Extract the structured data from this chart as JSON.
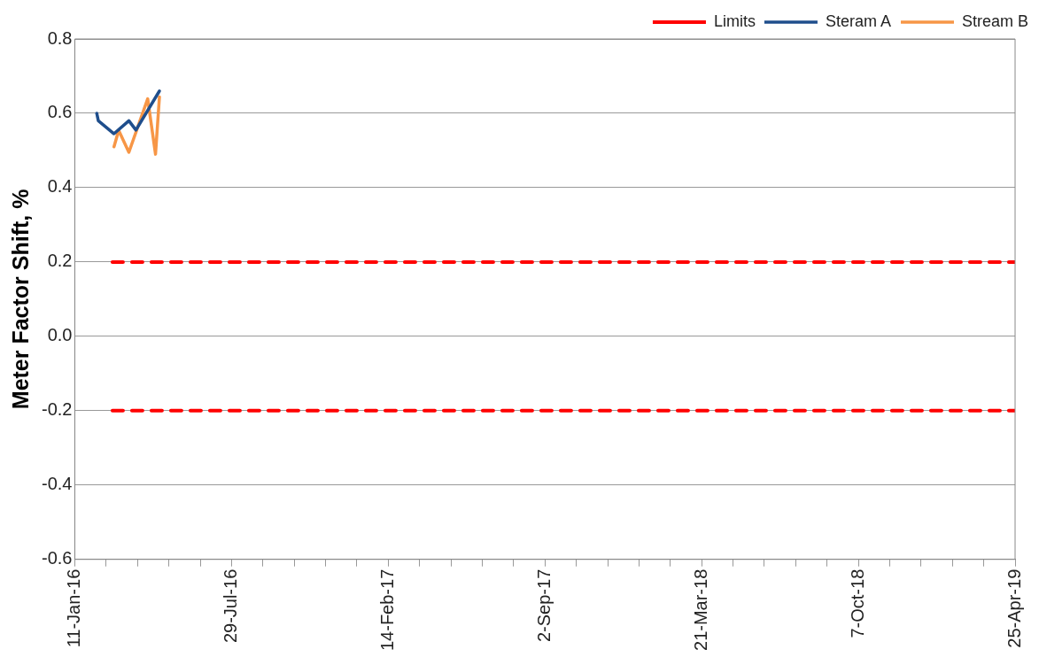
{
  "chart_data": {
    "type": "line",
    "ylabel": "Meter Factor Shift, %",
    "xlim": [
      "2016-01-11",
      "2019-04-25"
    ],
    "xticks": [
      {
        "value": "2016-01-11",
        "label": "11-Jan-16"
      },
      {
        "value": "2016-02-20",
        "label": null
      },
      {
        "value": "2016-03-31",
        "label": null
      },
      {
        "value": "2016-05-10",
        "label": null
      },
      {
        "value": "2016-06-19",
        "label": null
      },
      {
        "value": "2016-07-29",
        "label": "29-Jul-16"
      },
      {
        "value": "2016-09-07",
        "label": null
      },
      {
        "value": "2016-10-17",
        "label": null
      },
      {
        "value": "2016-11-26",
        "label": null
      },
      {
        "value": "2017-01-05",
        "label": null
      },
      {
        "value": "2017-02-14",
        "label": "14-Feb-17"
      },
      {
        "value": "2017-03-26",
        "label": null
      },
      {
        "value": "2017-05-05",
        "label": null
      },
      {
        "value": "2017-06-14",
        "label": null
      },
      {
        "value": "2017-07-24",
        "label": null
      },
      {
        "value": "2017-09-02",
        "label": "2-Sep-17"
      },
      {
        "value": "2017-10-12",
        "label": null
      },
      {
        "value": "2017-11-21",
        "label": null
      },
      {
        "value": "2017-12-31",
        "label": null
      },
      {
        "value": "2018-02-09",
        "label": null
      },
      {
        "value": "2018-03-21",
        "label": "21-Mar-18"
      },
      {
        "value": "2018-04-30",
        "label": null
      },
      {
        "value": "2018-06-09",
        "label": null
      },
      {
        "value": "2018-07-19",
        "label": null
      },
      {
        "value": "2018-08-28",
        "label": null
      },
      {
        "value": "2018-10-07",
        "label": "7-Oct-18"
      },
      {
        "value": "2018-11-16",
        "label": null
      },
      {
        "value": "2018-12-26",
        "label": null
      },
      {
        "value": "2019-02-04",
        "label": null
      },
      {
        "value": "2019-03-16",
        "label": null
      },
      {
        "value": "2019-04-25",
        "label": "25-Apr-19"
      }
    ],
    "ylim": [
      -0.6,
      0.8
    ],
    "yticks": [
      -0.6,
      -0.4,
      -0.2,
      {
        "value": 0,
        "label": "0.0"
      },
      0.2,
      0.4,
      0.6,
      0.8
    ],
    "grid": "y",
    "legend": "top right",
    "marker": "none",
    "series": [
      {
        "name": "Limits",
        "color": "#ff0000",
        "line_style": "dashed",
        "x": [
          "2016-02-28",
          "2019-04-25"
        ],
        "values": [
          0.2,
          0.2
        ]
      },
      {
        "color": "#ff0000",
        "line_style": "dashed",
        "x": [
          "2016-02-28",
          "2019-04-25"
        ],
        "values": [
          -0.2,
          -0.2
        ]
      },
      {
        "name": "Steram A",
        "color": "#1f4e8c",
        "line_style": "solid",
        "x": [
          "2016-02-08",
          "2016-02-10",
          "2016-03-01",
          "2016-03-20",
          "2016-03-29",
          "2016-04-28"
        ],
        "values": [
          0.6,
          0.58,
          0.545,
          0.58,
          0.555,
          0.66
        ]
      },
      {
        "name": "Stream B",
        "color": "#f79646",
        "line_style": "solid",
        "x": [
          "2016-03-01",
          "2016-03-07",
          "2016-03-20",
          "2016-04-13",
          "2016-04-23",
          "2016-04-28"
        ],
        "values": [
          0.51,
          0.554,
          0.495,
          0.639,
          0.49,
          0.644
        ]
      }
    ]
  }
}
